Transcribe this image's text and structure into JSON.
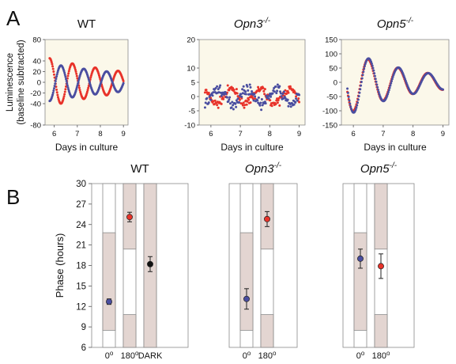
{
  "figure": {
    "panel_a_label": "A",
    "panel_b_label": "B"
  },
  "colors": {
    "series_red": "#e8332a",
    "series_blue": "#4a4ea0",
    "plot_bg": "#fbf8ea",
    "shade": "#e3d5d1",
    "dark_marker": "#111111"
  },
  "chart_data": [
    {
      "type": "scatter",
      "panel": "A",
      "title": "WT",
      "title_sup": "",
      "xlabel": "Days in culture",
      "ylabel": "Luminescence",
      "ylabel2": "(baseline subtracted)",
      "xlim": [
        5.6,
        9.2
      ],
      "ylim": [
        -80,
        80
      ],
      "xticks": [
        6,
        7,
        8,
        9
      ],
      "yticks": [
        80,
        40,
        20,
        0,
        -20,
        -40,
        -80
      ],
      "series": [
        {
          "color": "red",
          "t0": 5.8,
          "t1": 9.0,
          "amp0": 45,
          "decay": 0.25,
          "period": 0.99,
          "phase": 0.0
        },
        {
          "color": "blue",
          "t0": 5.8,
          "t1": 9.0,
          "amp0": 35,
          "decay": 0.22,
          "period": 0.99,
          "phase": 0.5
        }
      ]
    },
    {
      "type": "scatter",
      "panel": "A",
      "title": "Opn3",
      "title_sup": "-/-",
      "xlabel": "Days in culture",
      "ylabel": "",
      "xlim": [
        5.6,
        9.2
      ],
      "ylim": [
        -10,
        20
      ],
      "xticks": [
        6,
        7,
        8,
        9
      ],
      "yticks": [
        20,
        10,
        5,
        0,
        -5,
        -10
      ],
      "series": [
        {
          "color": "red",
          "t0": 5.8,
          "t1": 9.0,
          "amp0": 2.6,
          "decay": 0.0,
          "period": 0.99,
          "phase": 0.1,
          "noise": 1.3
        },
        {
          "color": "blue",
          "t0": 5.8,
          "t1": 9.0,
          "amp0": 2.6,
          "decay": 0.0,
          "period": 0.99,
          "phase": 0.55,
          "noise": 1.6
        }
      ]
    },
    {
      "type": "scatter",
      "panel": "A",
      "title": "Opn5",
      "title_sup": "-/-",
      "xlabel": "Days in culture",
      "ylabel": "",
      "xlim": [
        5.6,
        9.2
      ],
      "ylim": [
        -150,
        150
      ],
      "xticks": [
        6,
        7,
        8,
        9
      ],
      "yticks": [
        150,
        100,
        50,
        0,
        -50,
        -100,
        -150
      ],
      "series": [
        {
          "color": "red",
          "t0": 5.8,
          "t1": 9.0,
          "amp0": 110,
          "decay": 0.45,
          "period": 1.0,
          "phase": 0.3
        },
        {
          "color": "blue",
          "t0": 5.8,
          "t1": 9.0,
          "amp0": 118,
          "decay": 0.48,
          "period": 1.0,
          "phase": 0.28
        }
      ]
    },
    {
      "type": "phase",
      "panel": "B",
      "title": "WT",
      "title_sup": "",
      "ylabel": "Phase (hours)",
      "ylim": [
        6,
        30
      ],
      "yticks": [
        30,
        27,
        24,
        21,
        18,
        15,
        12,
        9,
        6
      ],
      "columns": [
        {
          "label": "0",
          "label_sup": "o",
          "shade": [
            [
              8.5,
              22.8
            ]
          ],
          "point": {
            "y": 12.7,
            "err": 0.4,
            "color": "blue"
          }
        },
        {
          "label": "180",
          "label_sup": "o",
          "shade": [
            [
              6,
              10.8
            ],
            [
              20.4,
              30
            ]
          ],
          "point": {
            "y": 25.1,
            "err": 0.7,
            "color": "red"
          }
        },
        {
          "label": "DARK",
          "label_sup": "",
          "shade": [
            [
              6,
              30
            ]
          ],
          "point": {
            "y": 18.2,
            "err": 1.1,
            "color": "dark"
          }
        }
      ]
    },
    {
      "type": "phase",
      "panel": "B",
      "title": "Opn3",
      "title_sup": "-/-",
      "ylabel": "",
      "ylim": [
        6,
        30
      ],
      "yticks": [],
      "columns": [
        {
          "label": "0",
          "label_sup": "o",
          "shade": [
            [
              8.5,
              22.8
            ]
          ],
          "point": {
            "y": 13.1,
            "err": 1.5,
            "color": "blue"
          }
        },
        {
          "label": "180",
          "label_sup": "o",
          "shade": [
            [
              6,
              10.8
            ],
            [
              20.4,
              30
            ]
          ],
          "point": {
            "y": 24.8,
            "err": 1.1,
            "color": "red"
          }
        }
      ]
    },
    {
      "type": "phase",
      "panel": "B",
      "title": "Opn5",
      "title_sup": "-/-",
      "ylabel": "",
      "ylim": [
        6,
        30
      ],
      "yticks": [],
      "columns": [
        {
          "label": "0",
          "label_sup": "o",
          "shade": [
            [
              8.5,
              22.8
            ]
          ],
          "point": {
            "y": 19.0,
            "err": 1.4,
            "color": "blue"
          }
        },
        {
          "label": "180",
          "label_sup": "o",
          "shade": [
            [
              6,
              10.8
            ],
            [
              20.4,
              30
            ]
          ],
          "point": {
            "y": 17.9,
            "err": 1.8,
            "color": "red"
          }
        }
      ]
    }
  ]
}
